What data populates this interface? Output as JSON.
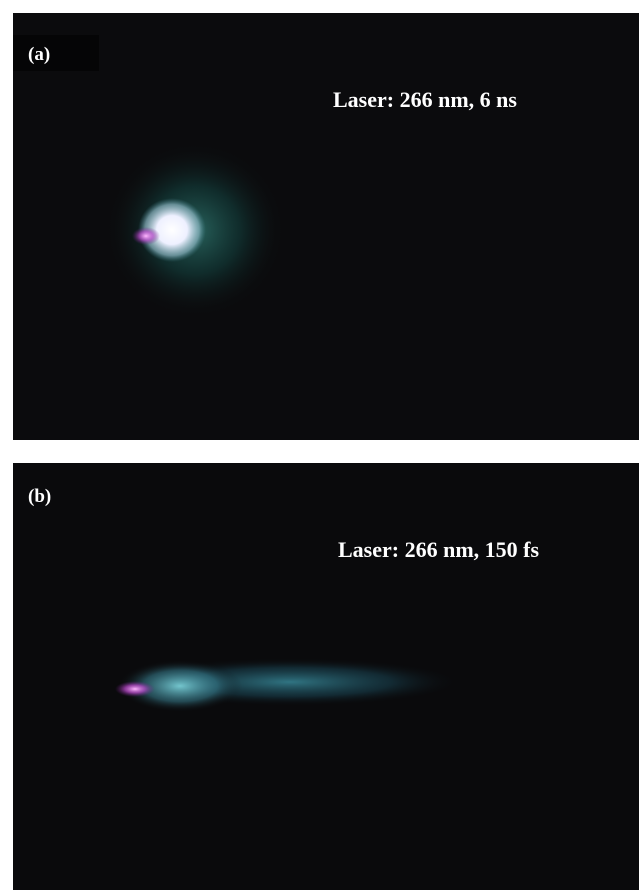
{
  "panels": [
    {
      "label": "(a)",
      "caption": "Laser: 266 nm, 6 ns"
    },
    {
      "label": "(b)",
      "caption": "Laser: 266 nm, 150 fs"
    }
  ]
}
